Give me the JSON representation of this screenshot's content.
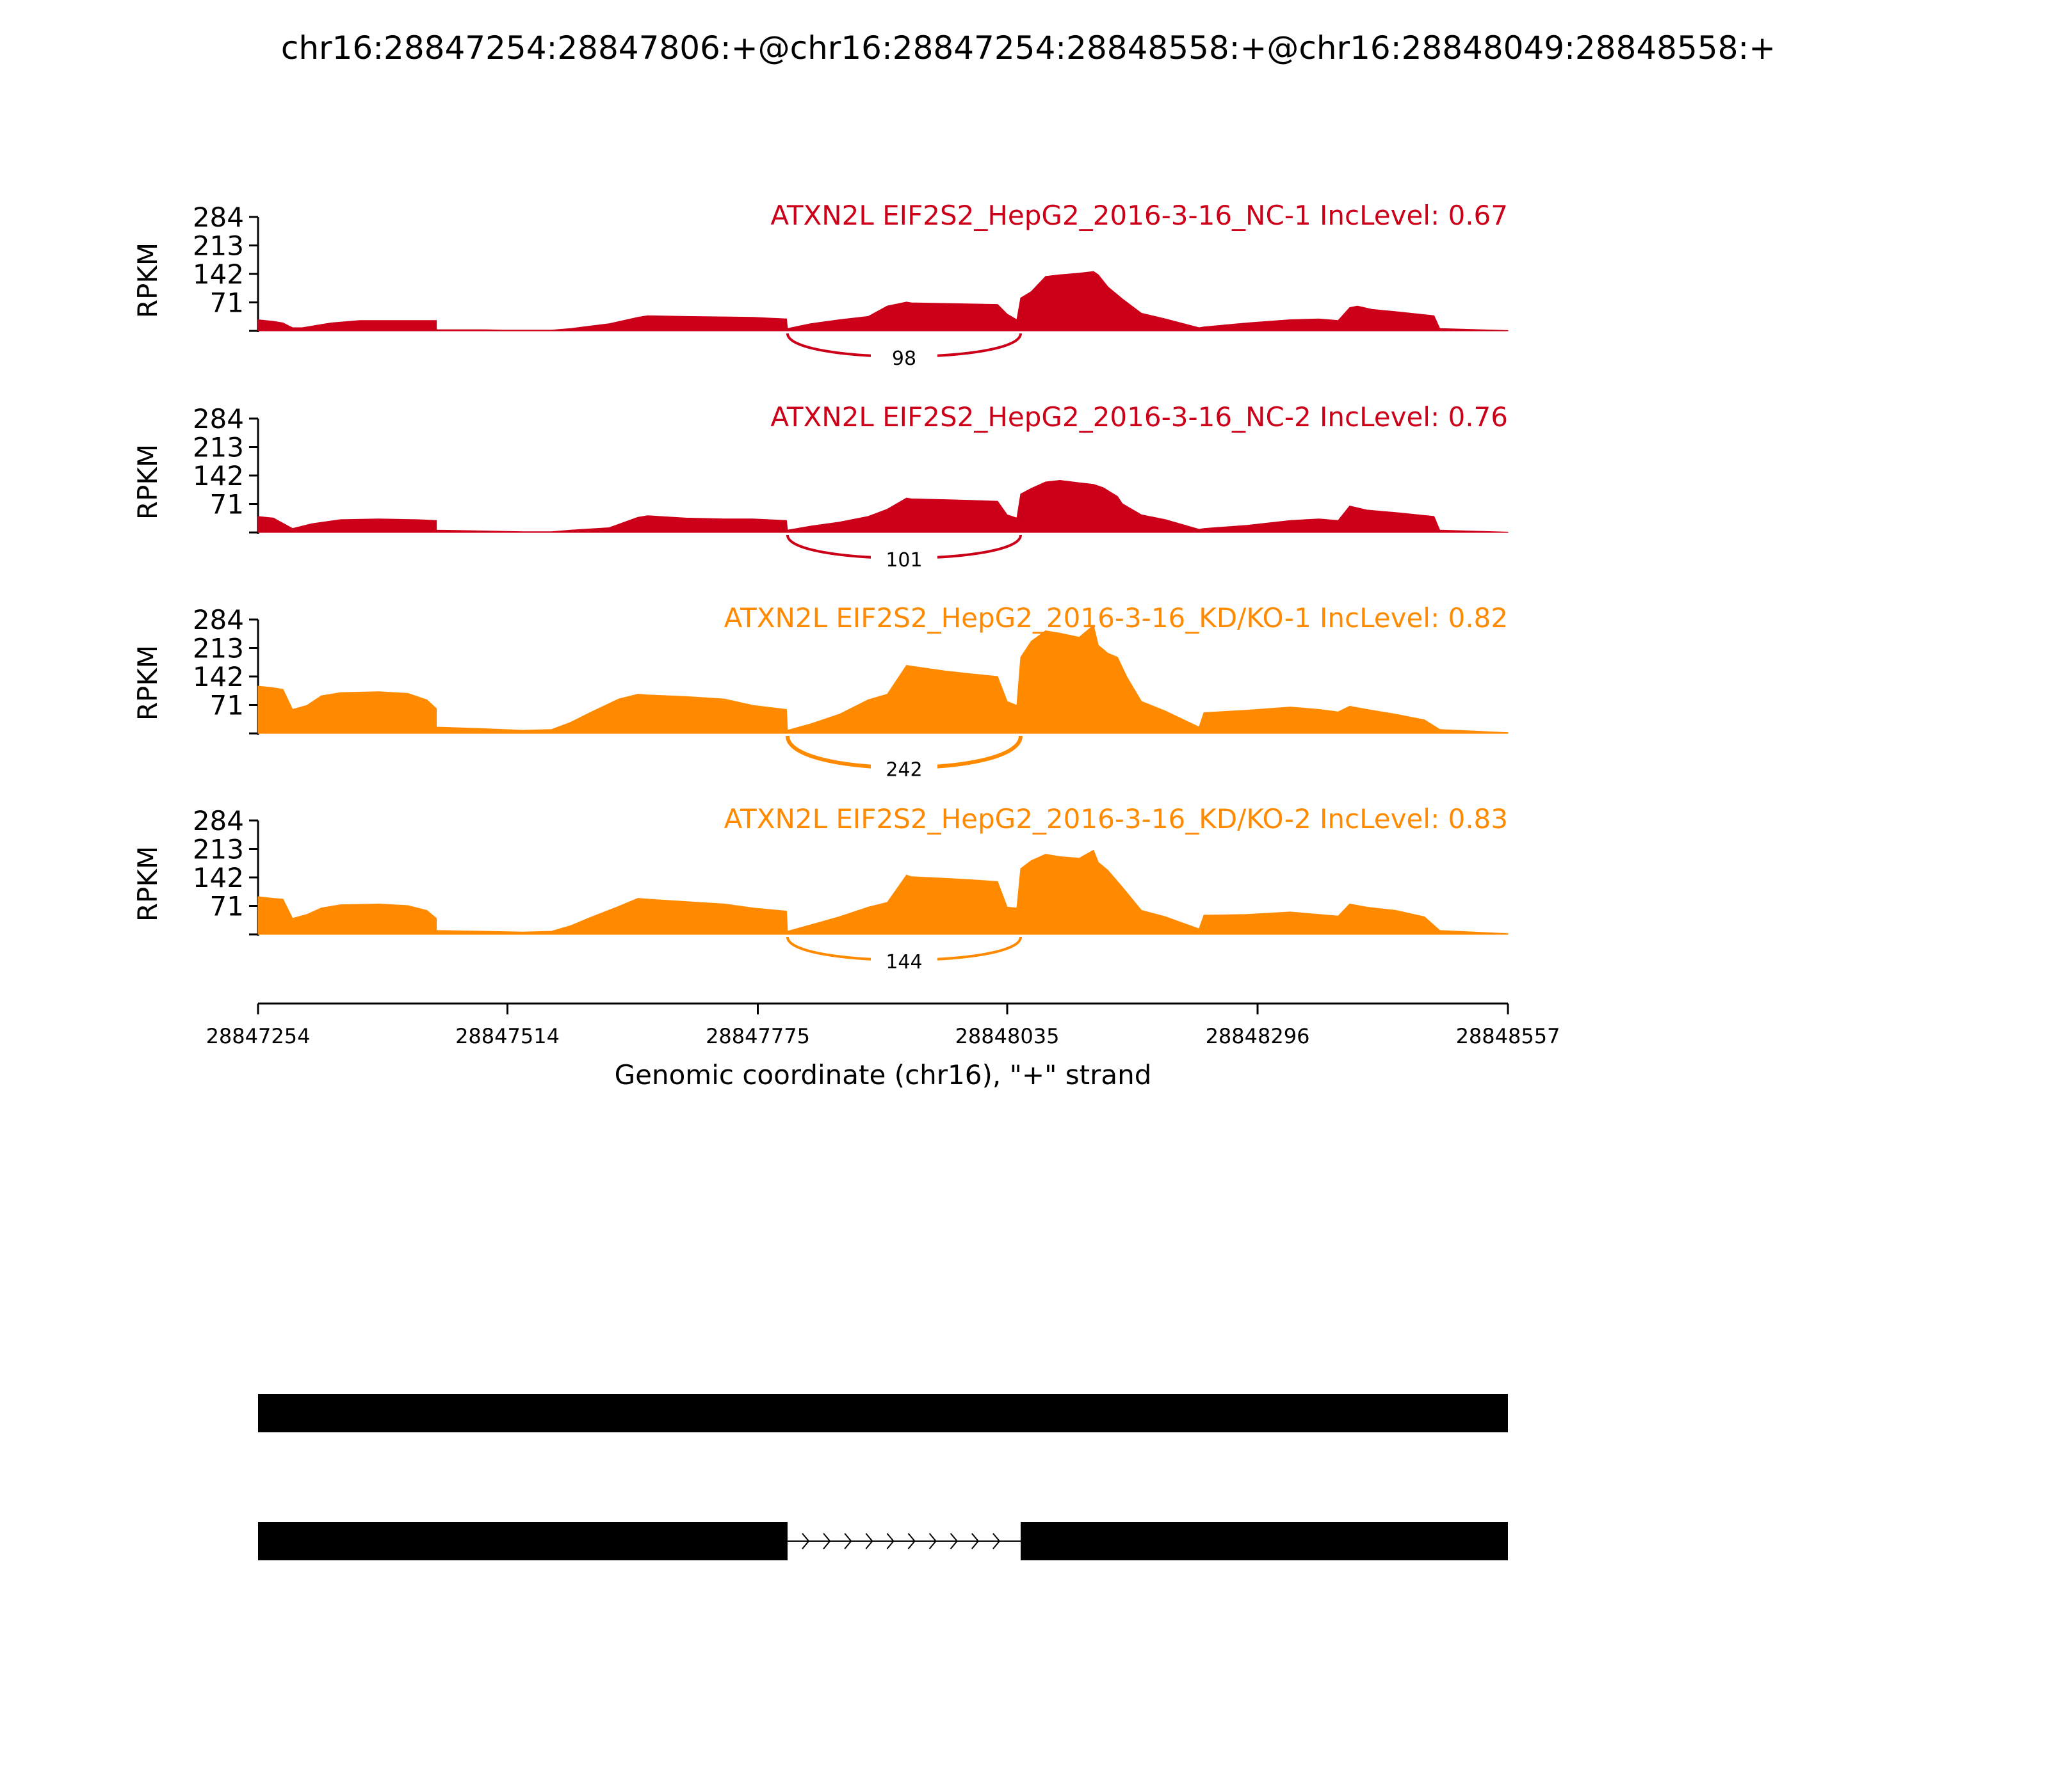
{
  "title": "chr16:28847254:28847806:+@chr16:28847254:28848558:+@chr16:28848049:28848558:+",
  "colors": {
    "nc": "#cc0018",
    "kd": "#ff8a00",
    "axis": "#000000",
    "gene": "#000000"
  },
  "chart_data": {
    "type": "area",
    "title": "chr16:28847254:28847806:+@chr16:28847254:28848558:+@chr16:28848049:28848558:+",
    "xlabel": "Genomic coordinate (chr16), \"+\" strand",
    "ylabel": "RPKM",
    "xlim": [
      28847254,
      28848557
    ],
    "ylim": [
      0,
      284
    ],
    "x_ticks": [
      "28847254",
      "28847514",
      "28847775",
      "28848035",
      "28848296",
      "28848557"
    ],
    "x_tick_values": [
      28847254,
      28847514,
      28847775,
      28848035,
      28848296,
      28848557
    ],
    "y_ticks": [
      "284",
      "213",
      "142",
      "71"
    ],
    "y_tick_values": [
      284,
      213,
      142,
      71
    ],
    "series": [
      {
        "name": "ATXN2L EIF2S2_HepG2_2016-3-16_NC-1 IncLevel: 0.67",
        "group": "nc",
        "junction_label": "98",
        "junction_reads": 98,
        "x": [
          28847254,
          28847270,
          28847280,
          28847290,
          28847300,
          28847330,
          28847360,
          28847400,
          28847440,
          28847440,
          28847490,
          28847510,
          28847540,
          28847560,
          28847580,
          28847620,
          28847650,
          28847660,
          28847700,
          28847740,
          28847770,
          28847805,
          28847806,
          28847830,
          28847860,
          28847890,
          28847910,
          28847930,
          28847935,
          28847980,
          28848025,
          28848035,
          28848045,
          28848049,
          28848060,
          28848075,
          28848090,
          28848110,
          28848125,
          28848130,
          28848140,
          28848155,
          28848175,
          28848200,
          28848235,
          28848240,
          28848285,
          28848330,
          28848360,
          28848380,
          28848392,
          28848400,
          28848415,
          28848440,
          28848480,
          28848486,
          28848557
        ],
        "y": [
          28,
          24,
          20,
          8,
          8,
          20,
          26,
          26,
          26,
          3,
          3,
          2,
          2,
          2,
          6,
          18,
          34,
          38,
          36,
          35,
          34,
          30,
          6,
          18,
          28,
          36,
          62,
          72,
          70,
          68,
          66,
          42,
          28,
          82,
          98,
          136,
          140,
          144,
          148,
          140,
          110,
          80,
          44,
          30,
          8,
          10,
          20,
          28,
          30,
          26,
          58,
          62,
          54,
          48,
          38,
          6,
          1
        ]
      },
      {
        "name": "ATXN2L EIF2S2_HepG2_2016-3-16_NC-2 IncLevel: 0.76",
        "group": "nc",
        "junction_label": "101",
        "junction_reads": 101,
        "x": [
          28847254,
          28847270,
          28847290,
          28847310,
          28847340,
          28847380,
          28847420,
          28847440,
          28847440,
          28847490,
          28847530,
          28847560,
          28847580,
          28847620,
          28847650,
          28847660,
          28847700,
          28847740,
          28847770,
          28847805,
          28847806,
          28847830,
          28847860,
          28847890,
          28847910,
          28847930,
          28847935,
          28847970,
          28848000,
          28848025,
          28848035,
          28848045,
          28848049,
          28848060,
          28848075,
          28848090,
          28848110,
          28848125,
          28848135,
          28848150,
          28848155,
          28848175,
          28848200,
          28848235,
          28848240,
          28848285,
          28848330,
          28848360,
          28848380,
          28848392,
          28848410,
          28848440,
          28848480,
          28848486,
          28848557
        ],
        "y": [
          40,
          36,
          10,
          22,
          32,
          34,
          32,
          30,
          6,
          4,
          2,
          2,
          6,
          12,
          38,
          42,
          36,
          34,
          34,
          30,
          6,
          16,
          26,
          40,
          58,
          86,
          84,
          82,
          80,
          78,
          44,
          36,
          96,
          110,
          126,
          130,
          124,
          120,
          112,
          90,
          72,
          44,
          32,
          8,
          10,
          18,
          30,
          34,
          30,
          66,
          56,
          50,
          40,
          6,
          1
        ]
      },
      {
        "name": "ATXN2L EIF2S2_HepG2_2016-3-16_KD/KO-1 IncLevel: 0.82",
        "group": "kd",
        "junction_label": "242",
        "junction_reads": 242,
        "x": [
          28847254,
          28847270,
          28847280,
          28847290,
          28847305,
          28847320,
          28847340,
          28847380,
          28847410,
          28847430,
          28847440,
          28847440,
          28847490,
          28847530,
          28847560,
          28847580,
          28847600,
          28847630,
          28847650,
          28847660,
          28847700,
          28847740,
          28847770,
          28847805,
          28847806,
          28847830,
          28847860,
          28847890,
          28847910,
          28847930,
          28847935,
          28847970,
          28848000,
          28848025,
          28848035,
          28848045,
          28848049,
          28848060,
          28848075,
          28848090,
          28848110,
          28848125,
          28848130,
          28848140,
          28848150,
          28848160,
          28848175,
          28848200,
          28848235,
          28848240,
          28848285,
          28848330,
          28848360,
          28848380,
          28848392,
          28848410,
          28848440,
          28848470,
          28848486,
          28848557
        ],
        "y": [
          118,
          114,
          110,
          60,
          70,
          94,
          102,
          104,
          100,
          84,
          62,
          16,
          12,
          8,
          10,
          28,
          52,
          86,
          98,
          96,
          92,
          86,
          70,
          60,
          8,
          24,
          48,
          84,
          98,
          170,
          168,
          156,
          148,
          142,
          80,
          70,
          190,
          230,
          256,
          250,
          240,
          270,
          220,
          200,
          190,
          140,
          80,
          56,
          16,
          52,
          58,
          66,
          60,
          54,
          68,
          60,
          48,
          34,
          10,
          2
        ]
      },
      {
        "name": "ATXN2L EIF2S2_HepG2_2016-3-16_KD/KO-2 IncLevel: 0.83",
        "group": "kd",
        "junction_label": "144",
        "junction_reads": 144,
        "x": [
          28847254,
          28847270,
          28847280,
          28847290,
          28847305,
          28847320,
          28847340,
          28847380,
          28847410,
          28847430,
          28847440,
          28847440,
          28847490,
          28847530,
          28847560,
          28847580,
          28847600,
          28847630,
          28847650,
          28847660,
          28847700,
          28847740,
          28847770,
          28847805,
          28847806,
          28847830,
          28847860,
          28847890,
          28847910,
          28847930,
          28847935,
          28847970,
          28848000,
          28848025,
          28848035,
          28848045,
          28848049,
          28848060,
          28848075,
          28848090,
          28848110,
          28848125,
          28848130,
          28848140,
          28848155,
          28848175,
          28848200,
          28848235,
          28848240,
          28848285,
          28848330,
          28848360,
          28848380,
          28848392,
          28848410,
          28848440,
          28848470,
          28848486,
          28848557
        ],
        "y": [
          94,
          90,
          88,
          40,
          50,
          66,
          74,
          76,
          72,
          60,
          40,
          10,
          8,
          6,
          8,
          22,
          42,
          70,
          90,
          88,
          82,
          76,
          66,
          58,
          8,
          24,
          44,
          68,
          80,
          148,
          144,
          140,
          136,
          132,
          68,
          66,
          164,
          184,
          200,
          194,
          190,
          210,
          180,
          160,
          118,
          60,
          44,
          14,
          48,
          50,
          56,
          50,
          46,
          76,
          68,
          60,
          44,
          10,
          2
        ]
      }
    ],
    "gene_models": [
      {
        "exons": [
          [
            28847254,
            28848557
          ]
        ]
      },
      {
        "exons": [
          [
            28847254,
            28847806
          ],
          [
            28848049,
            28848557
          ]
        ],
        "strand": "+"
      }
    ]
  }
}
